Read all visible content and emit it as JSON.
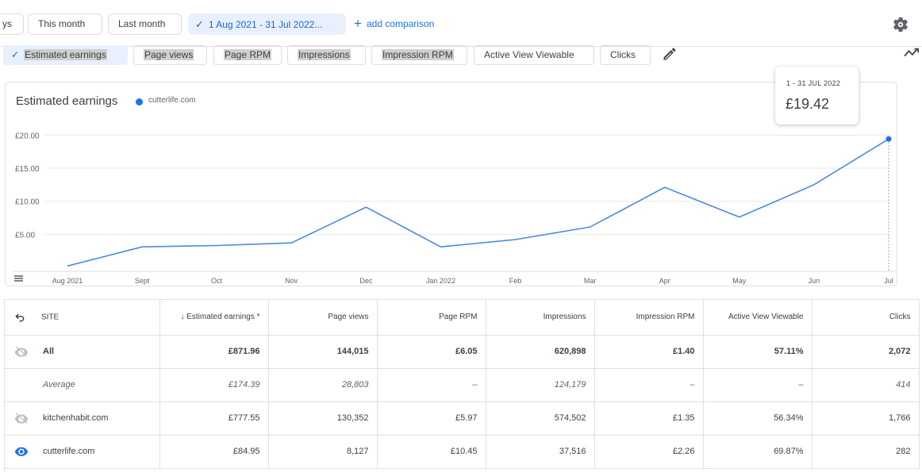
{
  "toolbar": {
    "date_ranges": [
      "ys",
      "This month",
      "Last month"
    ],
    "selected_range": "1 Aug 2021 - 31 Jul 2022...",
    "add_comparison": "add comparison",
    "settings_icon": "gear-icon"
  },
  "metrics": {
    "chips": [
      "Estimated earnings",
      "Page views",
      "Page RPM",
      "Impressions",
      "Impression RPM",
      "Active View Viewable",
      "Clicks"
    ],
    "selected": "Estimated earnings",
    "edit_icon": "pencil-icon",
    "trend_icon": "trending-icon"
  },
  "chart": {
    "title": "Estimated earnings",
    "legend": "cutterlife.com",
    "tooltip": {
      "period": "1 - 31 JUL 2022",
      "value": "£19.42"
    },
    "line_color": "#4a8bdc"
  },
  "chart_data": {
    "type": "line",
    "title": "Estimated earnings",
    "categories": [
      "Aug 2021",
      "Sept",
      "Oct",
      "Nov",
      "Dec",
      "Jan 2022",
      "Feb",
      "Mar",
      "Apr",
      "May",
      "Jun",
      "Jul"
    ],
    "series": [
      {
        "name": "cutterlife.com",
        "values": [
          0.2,
          3.1,
          3.3,
          3.7,
          9.1,
          3.1,
          4.2,
          6.1,
          12.1,
          7.6,
          12.5,
          19.42
        ]
      }
    ],
    "ytick_labels": [
      "£5.00",
      "£10.00",
      "£15.00",
      "£20.00"
    ],
    "yticks": [
      5,
      10,
      15,
      20
    ],
    "ylim": [
      0,
      21
    ],
    "grid": true,
    "legend": "top-left"
  },
  "table": {
    "headers": [
      "SITE",
      "↓ Estimated earnings *",
      "Page views",
      "Page RPM",
      "Impressions",
      "Impression RPM",
      "Active View Viewable",
      "Clicks"
    ],
    "rows": [
      {
        "icon": "hidden-eye-icon",
        "site": "All",
        "cells": [
          "£871.96",
          "144,015",
          "£6.05",
          "620,898",
          "£1.40",
          "57.11%",
          "2,072"
        ],
        "style": "bold"
      },
      {
        "icon": "",
        "site": "Average",
        "cells": [
          "£174.39",
          "28,803",
          "–",
          "124,179",
          "–",
          "–",
          "414"
        ],
        "style": "italic"
      },
      {
        "icon": "hidden-eye-icon",
        "site": "kitchenhabit.com",
        "cells": [
          "£777.55",
          "130,352",
          "£5.97",
          "574,502",
          "£1.35",
          "56.34%",
          "1,766"
        ],
        "style": "normal"
      },
      {
        "icon": "visible-eye-icon",
        "site": "cutterlife.com",
        "cells": [
          "£84.95",
          "8,127",
          "£10.45",
          "37,516",
          "£2.26",
          "69.87%",
          "282"
        ],
        "style": "normal"
      }
    ]
  }
}
